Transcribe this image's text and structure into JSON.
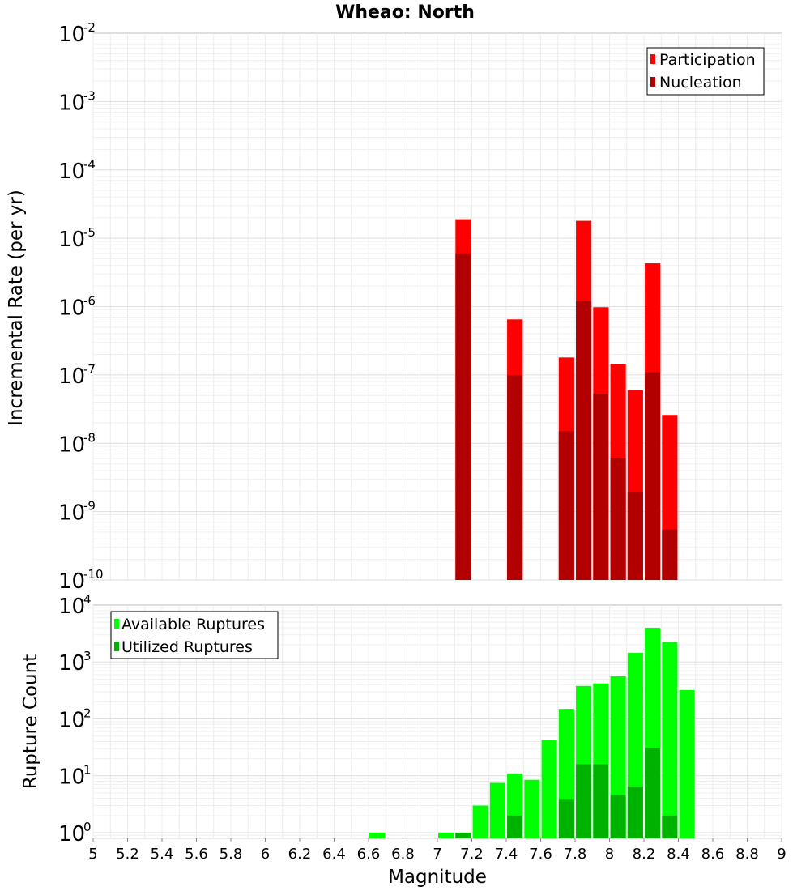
{
  "chart_data": [
    {
      "type": "bar",
      "title": "Wheao: North",
      "ylabel": "Incremental Rate (per yr)",
      "xlabel": "",
      "xlim": [
        5,
        9
      ],
      "ylim_log10": [
        -10,
        -2
      ],
      "yscale": "log",
      "yticks": [
        {
          "base": "10",
          "exp": "-2"
        },
        {
          "base": "10",
          "exp": "-3"
        },
        {
          "base": "10",
          "exp": "-4"
        },
        {
          "base": "10",
          "exp": "-5"
        },
        {
          "base": "10",
          "exp": "-6"
        },
        {
          "base": "10",
          "exp": "-7"
        },
        {
          "base": "10",
          "exp": "-8"
        },
        {
          "base": "10",
          "exp": "-9"
        },
        {
          "base": "10",
          "exp": "-10"
        }
      ],
      "grid": true,
      "legend_position": "top-right",
      "bar_width": 0.09,
      "series": [
        {
          "name": "Participation",
          "color": "#ff0000",
          "points": [
            {
              "x": 7.15,
              "y": 1.9e-05
            },
            {
              "x": 7.45,
              "y": 6.5e-07
            },
            {
              "x": 7.75,
              "y": 1.8e-07
            },
            {
              "x": 7.85,
              "y": 1.8e-05
            },
            {
              "x": 7.95,
              "y": 9.8e-07
            },
            {
              "x": 8.05,
              "y": 1.45e-07
            },
            {
              "x": 8.15,
              "y": 6e-08
            },
            {
              "x": 8.25,
              "y": 4.3e-06
            },
            {
              "x": 8.35,
              "y": 2.6e-08
            }
          ]
        },
        {
          "name": "Nucleation",
          "color": "#b20000",
          "points": [
            {
              "x": 7.15,
              "y": 6e-06
            },
            {
              "x": 7.45,
              "y": 1e-07
            },
            {
              "x": 7.75,
              "y": 1.5e-08
            },
            {
              "x": 7.85,
              "y": 1.2e-06
            },
            {
              "x": 7.95,
              "y": 5.3e-08
            },
            {
              "x": 8.05,
              "y": 6e-09
            },
            {
              "x": 8.15,
              "y": 1.9e-09
            },
            {
              "x": 8.25,
              "y": 1.1e-07
            },
            {
              "x": 8.35,
              "y": 5.5e-10
            }
          ]
        }
      ]
    },
    {
      "type": "bar",
      "title": "",
      "ylabel": "Rupture Count",
      "xlabel": "Magnitude",
      "xlim": [
        5,
        9
      ],
      "ylim_log10": [
        -0.1,
        4
      ],
      "yscale": "log",
      "yticks": [
        {
          "base": "10",
          "exp": "4"
        },
        {
          "base": "10",
          "exp": "3"
        },
        {
          "base": "10",
          "exp": "2"
        },
        {
          "base": "10",
          "exp": "1"
        },
        {
          "base": "10",
          "exp": "0"
        }
      ],
      "xticks": [
        "5",
        "5.2",
        "5.4",
        "5.6",
        "5.8",
        "6",
        "6.2",
        "6.4",
        "6.6",
        "6.8",
        "7",
        "7.2",
        "7.4",
        "7.6",
        "7.8",
        "8",
        "8.2",
        "8.4",
        "8.6",
        "8.8",
        "9"
      ],
      "grid": true,
      "legend_position": "top-left",
      "bar_width": 0.09,
      "series": [
        {
          "name": "Available Ruptures",
          "color": "#00ff00",
          "points": [
            {
              "x": 6.65,
              "y": 1
            },
            {
              "x": 7.05,
              "y": 1
            },
            {
              "x": 7.15,
              "y": 1
            },
            {
              "x": 7.25,
              "y": 3
            },
            {
              "x": 7.35,
              "y": 7.5
            },
            {
              "x": 7.45,
              "y": 11
            },
            {
              "x": 7.55,
              "y": 8.5
            },
            {
              "x": 7.65,
              "y": 42
            },
            {
              "x": 7.75,
              "y": 150
            },
            {
              "x": 7.85,
              "y": 380
            },
            {
              "x": 7.95,
              "y": 420
            },
            {
              "x": 8.05,
              "y": 560
            },
            {
              "x": 8.15,
              "y": 1450
            },
            {
              "x": 8.25,
              "y": 4000
            },
            {
              "x": 8.35,
              "y": 2250
            },
            {
              "x": 8.45,
              "y": 320
            }
          ]
        },
        {
          "name": "Utilized Ruptures",
          "color": "#00b200",
          "points": [
            {
              "x": 7.15,
              "y": 1
            },
            {
              "x": 7.45,
              "y": 2
            },
            {
              "x": 7.75,
              "y": 3.8
            },
            {
              "x": 7.85,
              "y": 16
            },
            {
              "x": 7.95,
              "y": 16
            },
            {
              "x": 8.05,
              "y": 4.6
            },
            {
              "x": 8.15,
              "y": 6.5
            },
            {
              "x": 8.25,
              "y": 31
            },
            {
              "x": 8.35,
              "y": 2
            }
          ]
        }
      ]
    }
  ]
}
